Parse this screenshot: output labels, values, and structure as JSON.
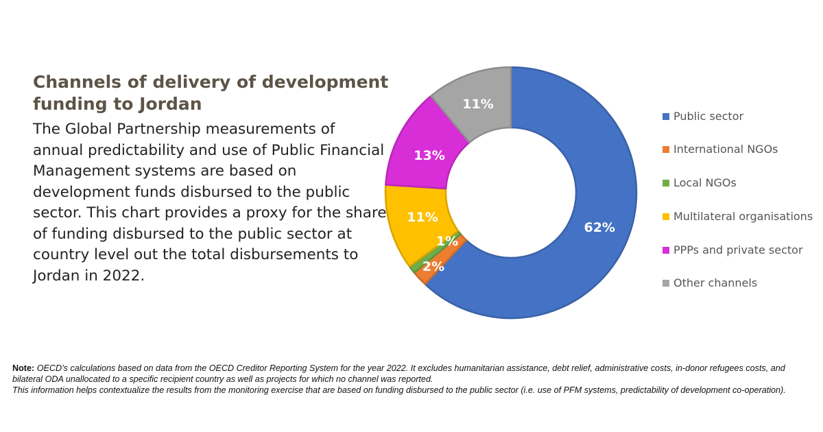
{
  "title": "Channels of delivery of development funding to Jordan",
  "description": "The Global Partnership measurements of annual predictability and use of Public Financial Management systems are based on development funds disbursed to the public sector. This chart provides a proxy for the share of funding disbursed to the public sector at country level out the total disbursements to Jordan in 2022.",
  "note": {
    "label": "Note:",
    "text": "OECD’s calculations based on data from the OECD Creditor Reporting System for the year 2022. It excludes humanitarian assistance, debt relief, administrative costs, in-donor refugees costs, and bilateral ODA unallocated to a specific recipient country as well as projects for which no channel was reported.",
    "line2": "This information helps contextualize the results from the monitoring exercise that are based on funding disbursed to the public sector (i.e. use of PFM systems, predictability of development co-operation)."
  },
  "chart_data": {
    "type": "pie",
    "donut": true,
    "legend_position": "right",
    "slices": [
      {
        "label": "Public sector",
        "value": 62,
        "display": "62%",
        "color": "#4472c4"
      },
      {
        "label": "International NGOs",
        "value": 2,
        "display": "2%",
        "color": "#ed7d31"
      },
      {
        "label": "Local NGOs",
        "value": 1,
        "display": "1%",
        "color": "#70ad47"
      },
      {
        "label": "Multilateral organisations",
        "value": 11,
        "display": "11%",
        "color": "#ffc000"
      },
      {
        "label": "PPPs and private sector",
        "value": 13,
        "display": "13%",
        "color": "#d82ed8"
      },
      {
        "label": "Other channels",
        "value": 11,
        "display": "11%",
        "color": "#a5a5a5"
      }
    ]
  }
}
